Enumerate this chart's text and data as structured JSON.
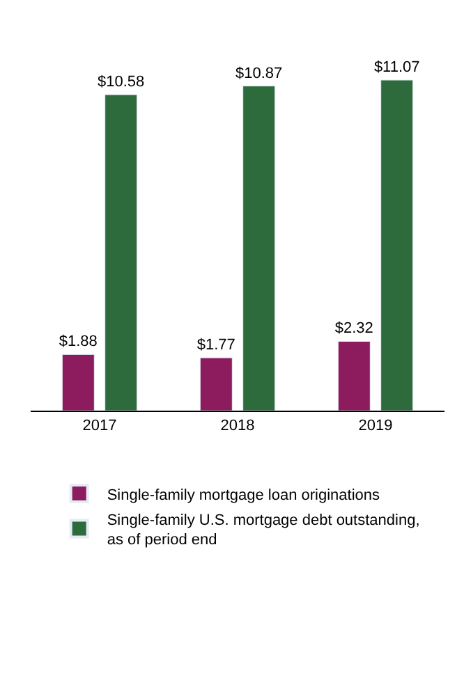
{
  "chart_data": {
    "type": "bar",
    "categories": [
      "2017",
      "2018",
      "2019"
    ],
    "series": [
      {
        "name": "Single-family mortgage loan originations",
        "color": "#8c1c5e",
        "values": [
          1.88,
          1.77,
          2.32
        ],
        "value_labels": [
          "$1.88",
          "$1.77",
          "$2.32"
        ]
      },
      {
        "name": "Single-family U.S. mortgage debt outstanding, as of period end",
        "color": "#2e6b3c",
        "values": [
          10.58,
          10.87,
          11.07
        ],
        "value_labels": [
          "$10.58",
          "$10.87",
          "$11.07"
        ]
      }
    ],
    "legend": "bottom"
  }
}
